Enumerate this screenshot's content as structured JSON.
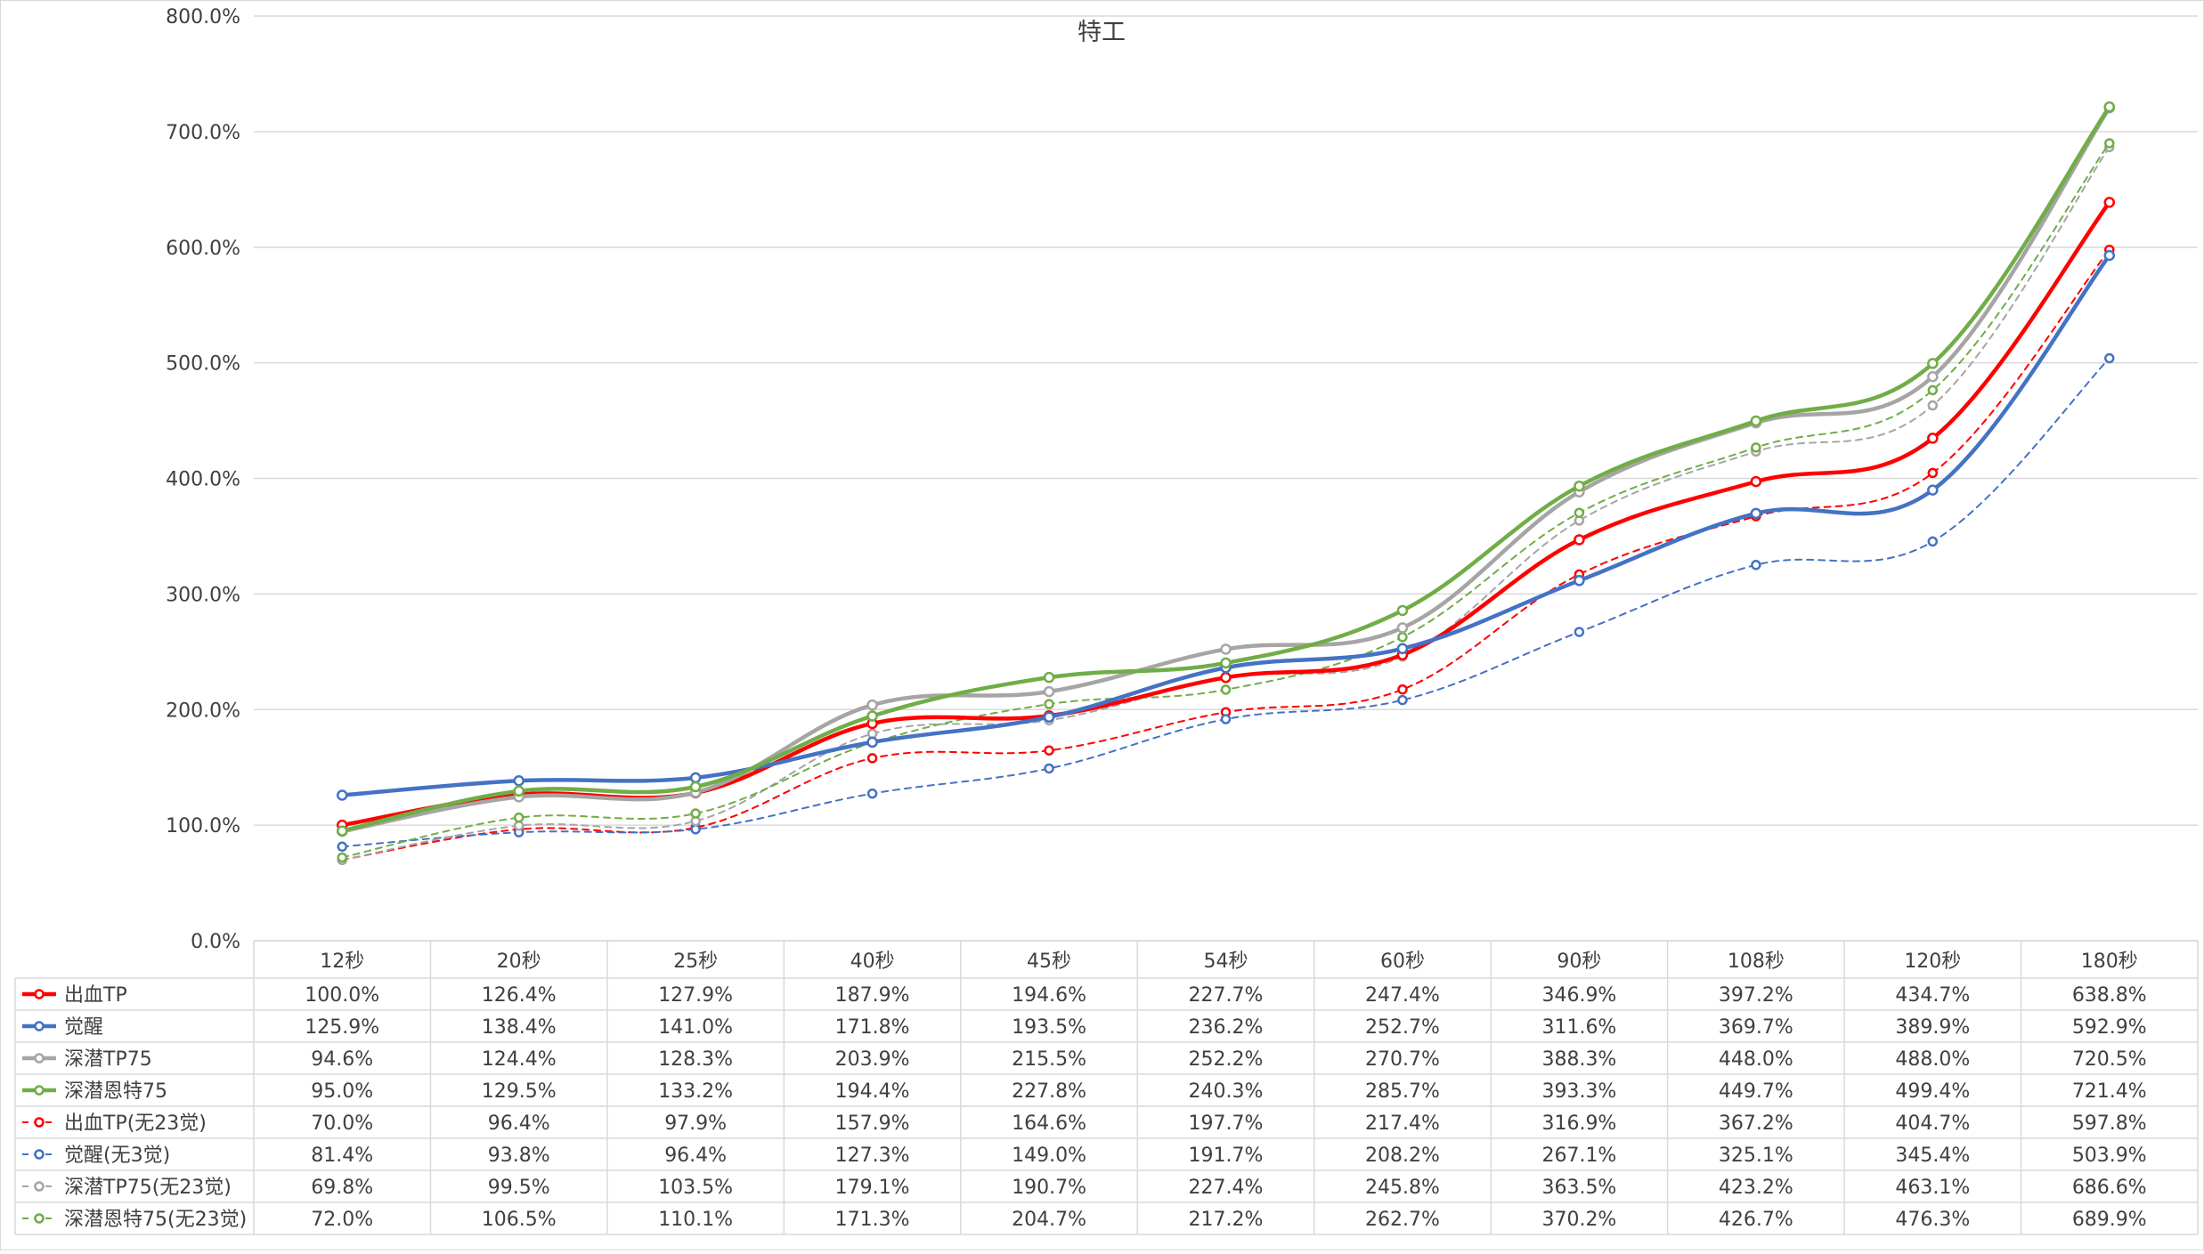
{
  "chart_data": {
    "type": "line",
    "title": "特工",
    "xlabel": "",
    "ylabel": "",
    "ylim": [
      0,
      800
    ],
    "y_tick_labels": [
      "0.0%",
      "100.0%",
      "200.0%",
      "300.0%",
      "400.0%",
      "500.0%",
      "600.0%",
      "700.0%",
      "800.0%"
    ],
    "grid": true,
    "legend": "data-table-bottom",
    "smoothed": true,
    "categories": [
      "12秒",
      "20秒",
      "25秒",
      "40秒",
      "45秒",
      "54秒",
      "60秒",
      "90秒",
      "108秒",
      "120秒",
      "180秒"
    ],
    "series": [
      {
        "name": "出血TP",
        "color": "#ff0000",
        "dashed": false,
        "values": [
          100.0,
          126.4,
          127.9,
          187.9,
          194.6,
          227.7,
          247.4,
          346.9,
          397.2,
          434.7,
          638.8
        ],
        "labels": [
          "100.0%",
          "126.4%",
          "127.9%",
          "187.9%",
          "194.6%",
          "227.7%",
          "247.4%",
          "346.9%",
          "397.2%",
          "434.7%",
          "638.8%"
        ]
      },
      {
        "name": "觉醒",
        "color": "#4472c4",
        "dashed": false,
        "values": [
          125.9,
          138.4,
          141.0,
          171.8,
          193.5,
          236.2,
          252.7,
          311.6,
          369.7,
          389.9,
          592.9
        ],
        "labels": [
          "125.9%",
          "138.4%",
          "141.0%",
          "171.8%",
          "193.5%",
          "236.2%",
          "252.7%",
          "311.6%",
          "369.7%",
          "389.9%",
          "592.9%"
        ]
      },
      {
        "name": "深潜TP75",
        "color": "#a5a5a5",
        "dashed": false,
        "values": [
          94.6,
          124.4,
          128.3,
          203.9,
          215.5,
          252.2,
          270.7,
          388.3,
          448.0,
          488.0,
          720.5
        ],
        "labels": [
          "94.6%",
          "124.4%",
          "128.3%",
          "203.9%",
          "215.5%",
          "252.2%",
          "270.7%",
          "388.3%",
          "448.0%",
          "488.0%",
          "720.5%"
        ]
      },
      {
        "name": "深潜恩特75",
        "color": "#70ad47",
        "dashed": false,
        "values": [
          95.0,
          129.5,
          133.2,
          194.4,
          227.8,
          240.3,
          285.7,
          393.3,
          449.7,
          499.4,
          721.4
        ],
        "labels": [
          "95.0%",
          "129.5%",
          "133.2%",
          "194.4%",
          "227.8%",
          "240.3%",
          "285.7%",
          "393.3%",
          "449.7%",
          "499.4%",
          "721.4%"
        ]
      },
      {
        "name": "出血TP(无23觉)",
        "color": "#ff0000",
        "dashed": true,
        "values": [
          70.0,
          96.4,
          97.9,
          157.9,
          164.6,
          197.7,
          217.4,
          316.9,
          367.2,
          404.7,
          597.8
        ],
        "labels": [
          "70.0%",
          "96.4%",
          "97.9%",
          "157.9%",
          "164.6%",
          "197.7%",
          "217.4%",
          "316.9%",
          "367.2%",
          "404.7%",
          "597.8%"
        ]
      },
      {
        "name": "觉醒(无3觉)",
        "color": "#4472c4",
        "dashed": true,
        "values": [
          81.4,
          93.8,
          96.4,
          127.3,
          149.0,
          191.7,
          208.2,
          267.1,
          325.1,
          345.4,
          503.9
        ],
        "labels": [
          "81.4%",
          "93.8%",
          "96.4%",
          "127.3%",
          "149.0%",
          "191.7%",
          "208.2%",
          "267.1%",
          "325.1%",
          "345.4%",
          "503.9%"
        ]
      },
      {
        "name": "深潜TP75(无23觉)",
        "color": "#a5a5a5",
        "dashed": true,
        "values": [
          69.8,
          99.5,
          103.5,
          179.1,
          190.7,
          227.4,
          245.8,
          363.5,
          423.2,
          463.1,
          686.6
        ],
        "labels": [
          "69.8%",
          "99.5%",
          "103.5%",
          "179.1%",
          "190.7%",
          "227.4%",
          "245.8%",
          "363.5%",
          "423.2%",
          "463.1%",
          "686.6%"
        ]
      },
      {
        "name": "深潜恩特75(无23觉)",
        "color": "#70ad47",
        "dashed": true,
        "values": [
          72.0,
          106.5,
          110.1,
          171.3,
          204.7,
          217.2,
          262.7,
          370.2,
          426.7,
          476.3,
          689.9
        ],
        "labels": [
          "72.0%",
          "106.5%",
          "110.1%",
          "171.3%",
          "204.7%",
          "217.2%",
          "262.7%",
          "370.2%",
          "426.7%",
          "476.3%",
          "689.9%"
        ]
      }
    ]
  }
}
